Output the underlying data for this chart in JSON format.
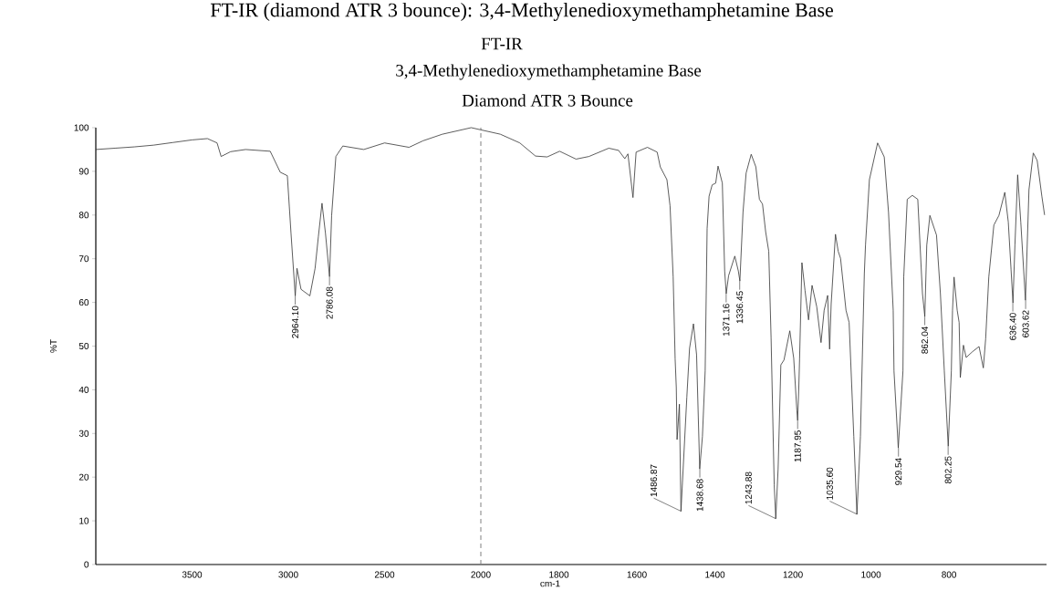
{
  "chart_data": [
    {
      "type": "line",
      "ylabel": "%T",
      "x": [
        4000,
        3900,
        3800,
        3700,
        3600,
        3500,
        3420,
        3370,
        3349,
        3300,
        3222,
        3094,
        3042,
        3005,
        2986,
        2964,
        2955,
        2934,
        2888,
        2861,
        2844,
        2825,
        2807,
        2786,
        2775,
        2753,
        2717,
        2608,
        2500,
        2373,
        2300,
        2200,
        2100,
        2050,
        2000
      ],
      "values": [
        95.0,
        95.3,
        95.6,
        96.0,
        96.6,
        97.2,
        97.5,
        96.5,
        93.4,
        94.5,
        95.0,
        94.6,
        89.8,
        89.0,
        75.8,
        61.5,
        67.8,
        63.0,
        61.5,
        67.8,
        75.0,
        82.7,
        75.8,
        65.9,
        79.9,
        93.4,
        95.8,
        95.0,
        96.5,
        95.5,
        97.0,
        98.5,
        99.5,
        100,
        99.5
      ],
      "color": "#333333",
      "xlim": [
        4000,
        2000
      ],
      "xticks": [
        3500,
        3000,
        2500
      ],
      "ylim": [
        0,
        100
      ],
      "yticks": [
        0,
        10,
        20,
        30,
        40,
        50,
        60,
        70,
        80,
        90,
        100
      ],
      "marker": "none",
      "line_style": "solid",
      "annotations": [
        {
          "text": "2964.10",
          "x": 2964.1,
          "y": 61.5
        },
        {
          "text": "2786.08",
          "x": 2786.08,
          "y": 65.9
        }
      ]
    },
    {
      "type": "line",
      "title": "FT-IR",
      "subtitle": "3,4-Methylenedioxymethamphetamine Base",
      "xlabel": "cm-1",
      "x": [
        2000,
        1950,
        1900,
        1860,
        1830,
        1798,
        1756,
        1723,
        1672,
        1647,
        1631,
        1623,
        1610,
        1602,
        1573,
        1548,
        1540,
        1523,
        1515,
        1507,
        1502,
        1499,
        1497,
        1491,
        1487,
        1472,
        1465,
        1455,
        1447,
        1439,
        1432,
        1425,
        1420,
        1415,
        1407,
        1398,
        1392,
        1381,
        1375,
        1371,
        1365,
        1349,
        1340,
        1336,
        1328,
        1320,
        1307,
        1295,
        1286,
        1278,
        1270,
        1262,
        1256,
        1248,
        1244,
        1238,
        1231,
        1223,
        1208,
        1198,
        1190,
        1188,
        1185,
        1183,
        1177,
        1169,
        1160,
        1151,
        1139,
        1128,
        1120,
        1111,
        1106,
        1102,
        1091,
        1084,
        1078,
        1064,
        1056,
        1044,
        1036,
        1027,
        1017,
        1014,
        1004,
        983,
        966,
        955,
        943,
        941,
        930,
        918,
        916,
        907,
        894,
        880,
        868,
        862,
        857,
        849,
        832,
        822,
        812,
        802,
        794,
        791,
        787,
        779,
        774,
        771,
        763,
        756,
        740,
        723,
        712,
        706,
        698,
        685,
        672,
        657,
        648,
        641,
        636,
        631,
        624,
        616,
        604,
        595,
        584,
        574,
        562,
        555
      ],
      "values": [
        99.5,
        98.5,
        96.5,
        93.5,
        93.3,
        94.6,
        92.8,
        93.4,
        95.3,
        94.8,
        92.9,
        94.0,
        84.0,
        94.4,
        95.5,
        94.4,
        91.0,
        88.1,
        82.1,
        65.8,
        47.1,
        40.5,
        28.6,
        36.7,
        12.2,
        38.3,
        49.5,
        55.1,
        48.0,
        21.9,
        29.3,
        44.3,
        76.9,
        84.3,
        86.9,
        87.3,
        91.2,
        87.3,
        67.2,
        62.0,
        66.1,
        70.6,
        67.2,
        64.9,
        80.6,
        89.6,
        93.9,
        91.0,
        83.6,
        82.5,
        76.2,
        71.7,
        51.8,
        18.2,
        10.5,
        21.9,
        45.7,
        46.8,
        53.5,
        47.2,
        35.3,
        33.0,
        40.5,
        47.0,
        69.1,
        62.7,
        56.0,
        63.9,
        59.0,
        50.8,
        58.2,
        61.6,
        49.3,
        59.7,
        75.6,
        71.7,
        70.1,
        58.2,
        55.4,
        29.3,
        11.5,
        29.3,
        66.6,
        73.1,
        88.1,
        96.5,
        93.3,
        80.6,
        58.2,
        44.3,
        26.7,
        44.3,
        65.8,
        83.6,
        84.5,
        83.6,
        62.0,
        56.8,
        73.1,
        79.9,
        75.4,
        62.0,
        44.3,
        27.1,
        44.3,
        58.2,
        65.8,
        58.2,
        55.4,
        42.8,
        50.2,
        47.4,
        48.7,
        49.9,
        45.0,
        51.7,
        65.8,
        77.7,
        79.9,
        85.2,
        78.4,
        67.6,
        59.9,
        73.1,
        89.2,
        78.4,
        60.5,
        85.8,
        94.2,
        92.5,
        84.3,
        80.0
      ],
      "color": "#333333",
      "xlim": [
        2000,
        550
      ],
      "xticks": [
        2000,
        1800,
        1600,
        1400,
        1200,
        1000,
        800
      ],
      "ylim": [
        0,
        100
      ],
      "tick_labels": "x",
      "marker": "none",
      "line_style": "solid",
      "ref_lines": [
        {
          "axis": "x",
          "value": 2000,
          "color": "#808080",
          "line_style": "dashed"
        }
      ],
      "annotations": [
        "FT-IR (diamond ATR 3 bounce): 3,4-Methylenedioxymethamphetamine Base",
        "Diamond ATR 3 Bounce",
        {
          "text": "1486.87",
          "x": 1486.87,
          "y": 12.2
        },
        {
          "text": "1438.68",
          "x": 1438.68,
          "y": 21.9
        },
        {
          "text": "1371.16",
          "x": 1371.16,
          "y": 62.0
        },
        {
          "text": "1336.45",
          "x": 1336.45,
          "y": 64.9
        },
        {
          "text": "1243.88",
          "x": 1243.88,
          "y": 10.5
        },
        {
          "text": "1187.95",
          "x": 1187.95,
          "y": 33.0
        },
        {
          "text": "1035.60",
          "x": 1035.6,
          "y": 11.5
        },
        {
          "text": "929.54",
          "x": 929.54,
          "y": 26.7
        },
        {
          "text": "862.04",
          "x": 862.04,
          "y": 56.8
        },
        {
          "text": "802.25",
          "x": 802.25,
          "y": 27.1
        },
        {
          "text": "636.40",
          "x": 636.4,
          "y": 59.9
        },
        {
          "text": "603.62",
          "x": 603.62,
          "y": 60.5
        }
      ]
    }
  ]
}
